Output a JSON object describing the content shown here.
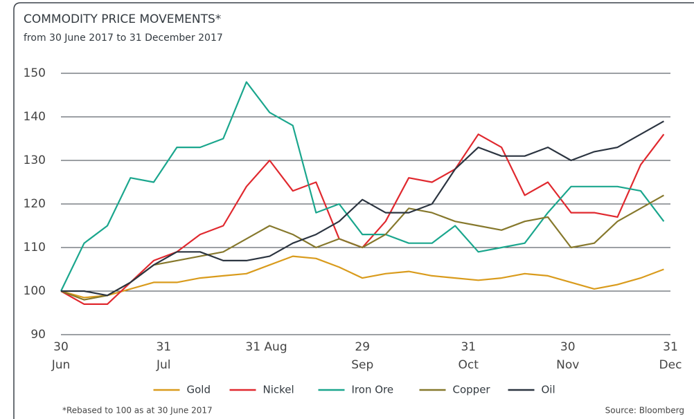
{
  "chart_data": {
    "type": "line",
    "title": "COMMODITY PRICE MOVEMENTS*",
    "subtitle": "from 30 June 2017 to 31 December 2017",
    "footnote": "*Rebased to 100 as at 30 June 2017",
    "source": "Source: Bloomberg",
    "x": [
      "2017-06-30",
      "2017-07-07",
      "2017-07-14",
      "2017-07-21",
      "2017-07-28",
      "2017-08-04",
      "2017-08-11",
      "2017-08-18",
      "2017-08-25",
      "2017-09-01",
      "2017-09-08",
      "2017-09-15",
      "2017-09-22",
      "2017-09-29",
      "2017-10-06",
      "2017-10-13",
      "2017-10-20",
      "2017-10-27",
      "2017-11-03",
      "2017-11-10",
      "2017-11-17",
      "2017-11-24",
      "2017-12-01",
      "2017-12-08",
      "2017-12-15",
      "2017-12-22",
      "2017-12-29"
    ],
    "series": [
      {
        "name": "Gold",
        "color": "#d99b1c",
        "values": [
          100,
          98.5,
          99,
          100.5,
          102,
          102,
          103,
          103.5,
          104,
          106,
          108,
          107.5,
          105.5,
          103,
          104,
          104.5,
          103.5,
          103,
          102.5,
          103,
          104,
          103.5,
          102,
          100.5,
          101.5,
          103,
          105
        ]
      },
      {
        "name": "Nickel",
        "color": "#e0282e",
        "values": [
          100,
          97,
          97,
          102,
          107,
          109,
          113,
          115,
          124,
          130,
          123,
          125,
          112,
          110,
          116,
          126,
          125,
          128,
          136,
          133,
          122,
          125,
          118,
          118,
          117,
          129,
          136
        ]
      },
      {
        "name": "Iron Ore",
        "color": "#1aa68d",
        "values": [
          100,
          111,
          115,
          126,
          125,
          133,
          133,
          135,
          148,
          141,
          138,
          118,
          120,
          113,
          113,
          111,
          111,
          115,
          109,
          110,
          111,
          118,
          124,
          124,
          124,
          123,
          116
        ]
      },
      {
        "name": "Copper",
        "color": "#86782c",
        "values": [
          100,
          98,
          99,
          102,
          106,
          107,
          108,
          109,
          112,
          115,
          113,
          110,
          112,
          110,
          113,
          119,
          118,
          116,
          115,
          114,
          116,
          117,
          110,
          111,
          116,
          119,
          122
        ]
      },
      {
        "name": "Oil",
        "color": "#2b3440",
        "values": [
          100,
          100,
          99,
          102,
          106,
          109,
          109,
          107,
          107,
          108,
          111,
          113,
          116,
          121,
          118,
          118,
          120,
          128,
          133,
          131,
          131,
          133,
          130,
          132,
          133,
          136,
          139
        ]
      }
    ],
    "xlim": [
      "2017-06-30",
      "2017-12-31"
    ],
    "xticks": [
      {
        "value": "2017-06-30",
        "label": [
          "30",
          "Jun"
        ]
      },
      {
        "value": "2017-07-31",
        "label": [
          "31",
          "Jul"
        ]
      },
      {
        "value": "2017-08-31",
        "label": [
          "31 Aug"
        ]
      },
      {
        "value": "2017-09-29",
        "label": [
          "29",
          "Sep"
        ]
      },
      {
        "value": "2017-10-31",
        "label": [
          "31",
          "Oct"
        ]
      },
      {
        "value": "2017-11-30",
        "label": [
          "30",
          "Nov"
        ]
      },
      {
        "value": "2017-12-31",
        "label": [
          "31",
          "Dec"
        ]
      }
    ],
    "ylim": [
      90,
      150
    ],
    "yticks": [
      90,
      100,
      110,
      120,
      130,
      140,
      150
    ],
    "grid": true,
    "legend": "bottom"
  }
}
